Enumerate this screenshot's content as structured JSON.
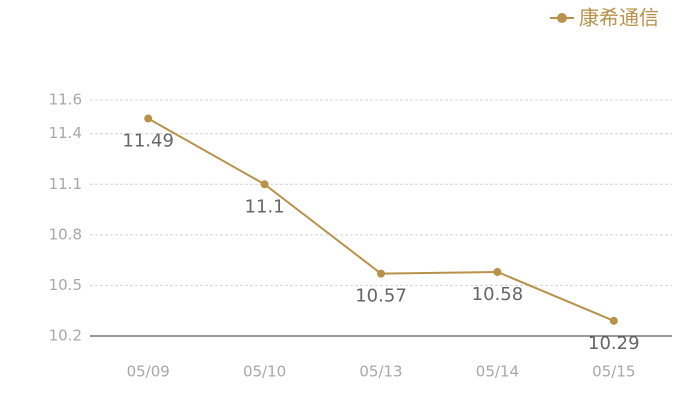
{
  "chart_data": {
    "type": "line",
    "categories": [
      "05/09",
      "05/10",
      "05/13",
      "05/14",
      "05/15"
    ],
    "series": [
      {
        "name": "康希通信",
        "color": "#b8924a",
        "values": [
          11.49,
          11.1,
          10.57,
          10.58,
          10.29
        ]
      }
    ],
    "ylim": [
      10.2,
      11.6
    ],
    "yticks": [
      10.2,
      10.5,
      10.8,
      11.1,
      11.4,
      11.6
    ],
    "grid": true,
    "legend": "top-right",
    "data_labels": true
  }
}
